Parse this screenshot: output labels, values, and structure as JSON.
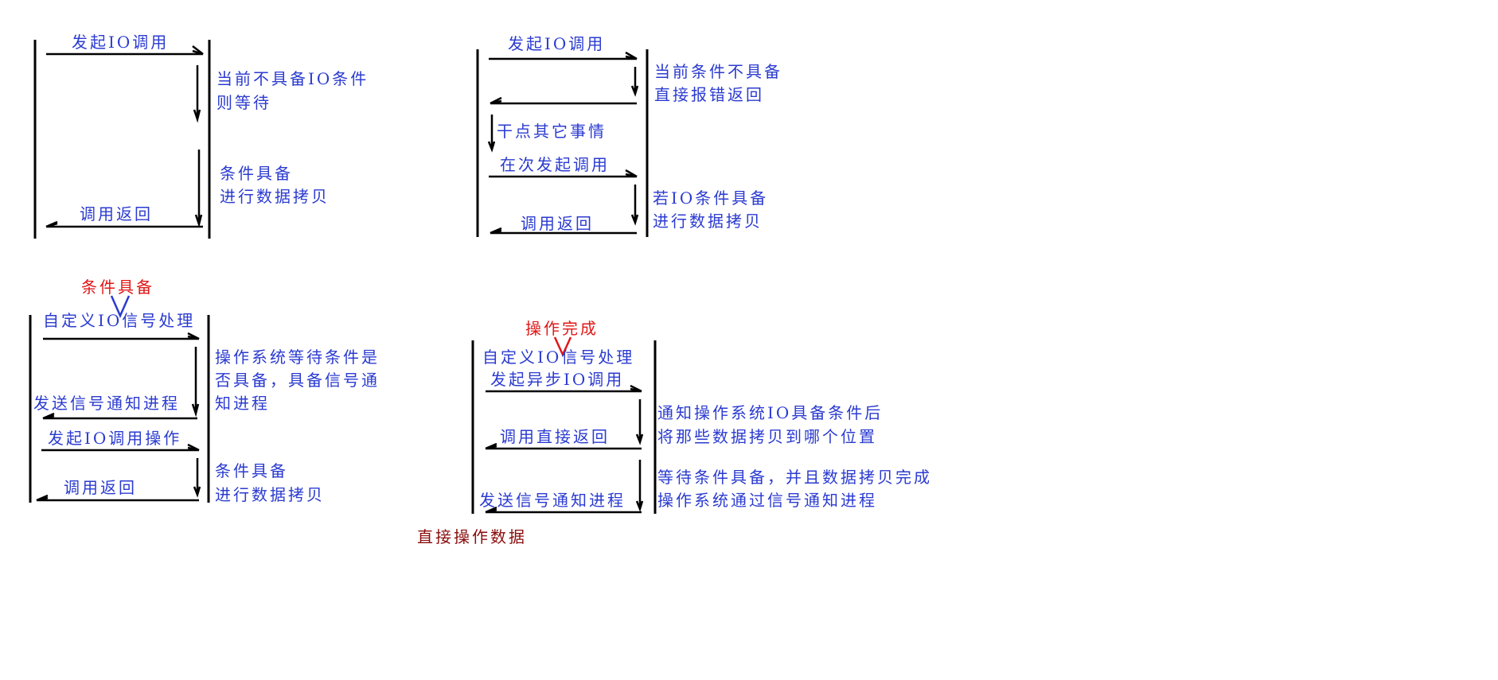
{
  "diagram": {
    "d1": {
      "call": "发起IO调用",
      "note1": [
        "当前不具备IO条件",
        "则等待"
      ],
      "note2": [
        "条件具备",
        "进行数据拷贝"
      ],
      "ret": "调用返回"
    },
    "d2": {
      "call": "发起IO调用",
      "note1": [
        "当前条件不具备",
        "直接报错返回"
      ],
      "other": "干点其它事情",
      "recall": "在次发起调用",
      "note2": [
        "若IO条件具备",
        "进行数据拷贝"
      ],
      "ret": "调用返回"
    },
    "d3": {
      "annot": "条件具备",
      "handler": "自定义IO信号处理",
      "note1": [
        "操作系统等待条件是",
        "否具备，具备信号通",
        "知进程"
      ],
      "signal": "发送信号通知进程",
      "call": "发起IO调用操作",
      "note2": [
        "条件具备",
        "进行数据拷贝"
      ],
      "ret": "调用返回"
    },
    "d4": {
      "annot": "操作完成",
      "handler": "自定义IO信号处理",
      "call": "发起异步IO调用",
      "note1": [
        "通知操作系统IO具备条件后",
        "将那些数据拷贝到哪个位置"
      ],
      "ret": "调用直接返回",
      "note2": [
        "等待条件具备，并且数据拷贝完成",
        "操作系统通过信号通知进程"
      ],
      "signal": "发送信号通知进程",
      "bottom": "直接操作数据"
    }
  }
}
